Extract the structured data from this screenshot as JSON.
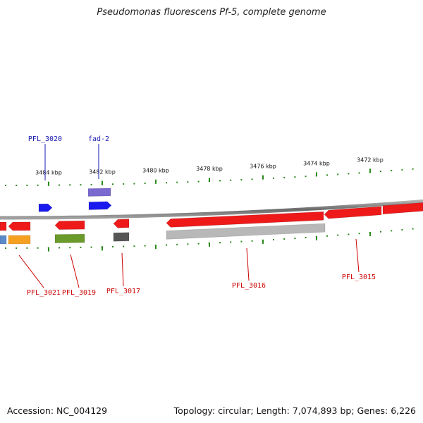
{
  "title": "Pseudomonas fluorescens Pf-5, complete genome",
  "footer": {
    "accession": "Accession: NC_004129",
    "summary": "Topology: circular; Length: 7,074,893 bp; Genes: 6,226"
  },
  "colors": {
    "backbone": "#8a8a8a",
    "forward_label": "#1a1ab0",
    "reverse_label": "#cc0000",
    "tick": "#2a8a1a"
  },
  "scale_labels": [
    "3484 kbp",
    "3482 kbp",
    "3480 kbp",
    "3478 kbp",
    "3476 kbp",
    "3474 kbp",
    "3472 kbp"
  ],
  "features": [
    {
      "label": "PFL_3020",
      "strand": "forward",
      "color": "#1a1aee"
    },
    {
      "label": "fad-2",
      "strand": "forward",
      "color": "#1a1aee"
    },
    {
      "label": "",
      "strand": "forward",
      "color": "#7a6ad0"
    },
    {
      "label": "PFL_3021",
      "strand": "reverse",
      "color": "#ee1a1a"
    },
    {
      "label": "PFL_3019",
      "strand": "reverse",
      "color": "#ee1a1a"
    },
    {
      "label": "PFL_3017",
      "strand": "reverse",
      "color": "#ee1a1a"
    },
    {
      "label": "PFL_3016",
      "strand": "reverse",
      "color": "#ee1a1a"
    },
    {
      "label": "PFL_3015",
      "strand": "reverse",
      "color": "#ee1a1a"
    },
    {
      "label": "",
      "strand": "reverse",
      "color": "#ee1a1a"
    },
    {
      "label": "",
      "strand": "reverse",
      "color": "#ee1a1a"
    },
    {
      "label": "",
      "strand": "reverse",
      "color": "#5a8ac8"
    },
    {
      "label": "",
      "strand": "reverse",
      "color": "#f5a020"
    },
    {
      "label": "",
      "strand": "reverse",
      "color": "#6a9a2a"
    },
    {
      "label": "",
      "strand": "reverse",
      "color": "#555555"
    },
    {
      "label": "",
      "strand": "reverse",
      "color": "#b8b8b8"
    }
  ]
}
